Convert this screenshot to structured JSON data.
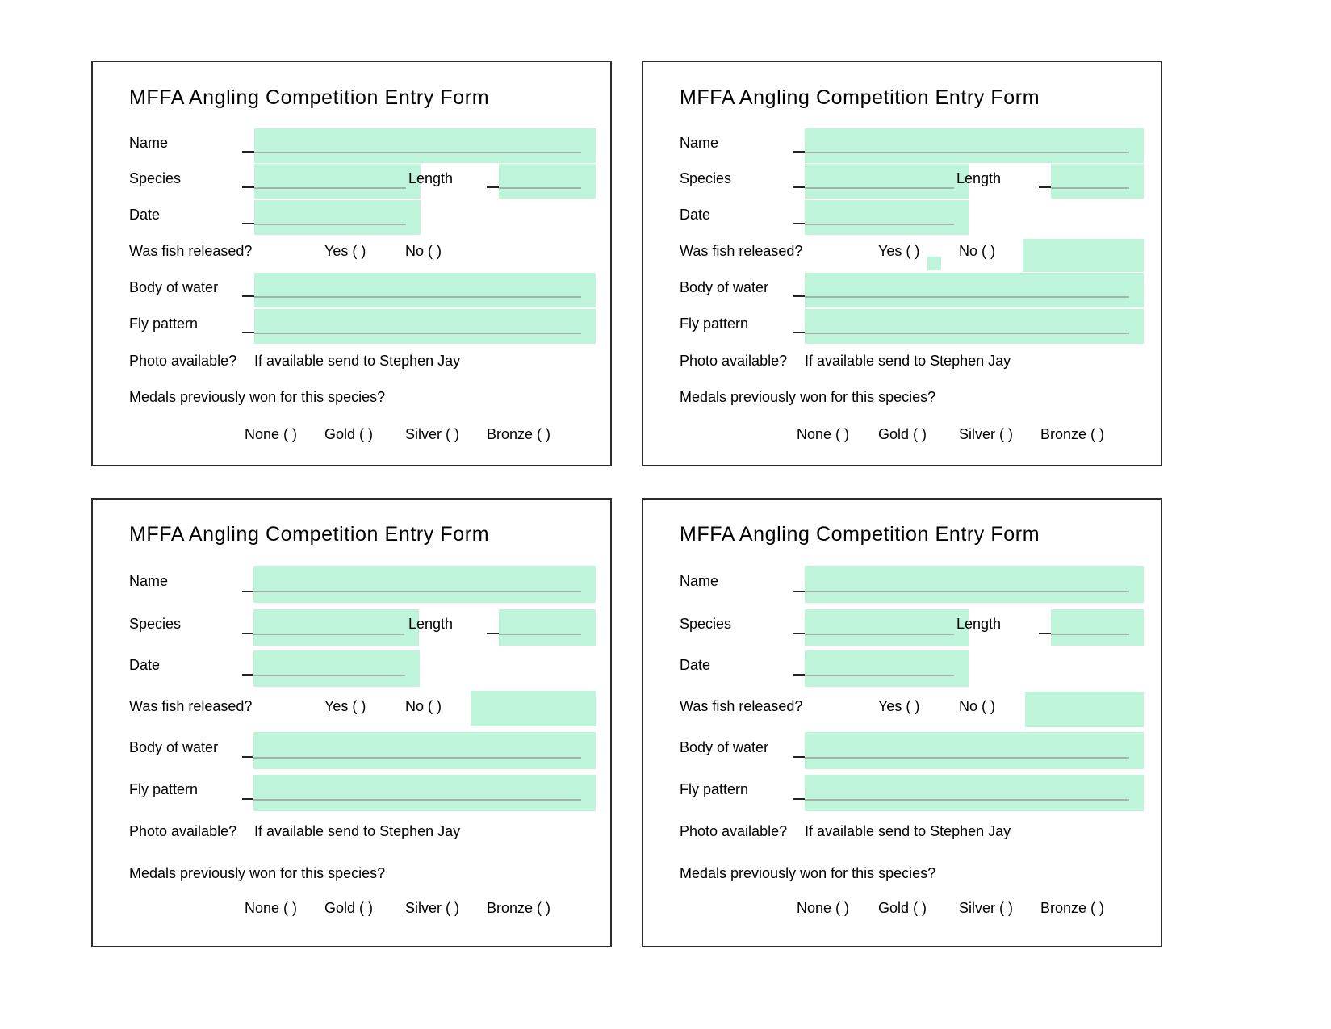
{
  "form": {
    "title": "MFFA Angling Competition Entry Form",
    "name_label": "Name",
    "species_label": "Species",
    "length_label": "Length",
    "date_label": "Date",
    "released_label": "Was fish released?",
    "yes_option": "Yes (   )",
    "no_option": "No (   )",
    "water_label": "Body of water",
    "fly_label": "Fly pattern",
    "photo_label": "Photo available?",
    "photo_note": "If available send to Stephen Jay",
    "medals_label": "Medals previously won for this species?",
    "medal_none": "None (   )",
    "medal_gold": "Gold (   )",
    "medal_silver": "Silver (   )",
    "medal_bronze": "Bronze (   )"
  },
  "colors": {
    "field_fill": "#bef5da",
    "border": "#2b2b2b"
  }
}
